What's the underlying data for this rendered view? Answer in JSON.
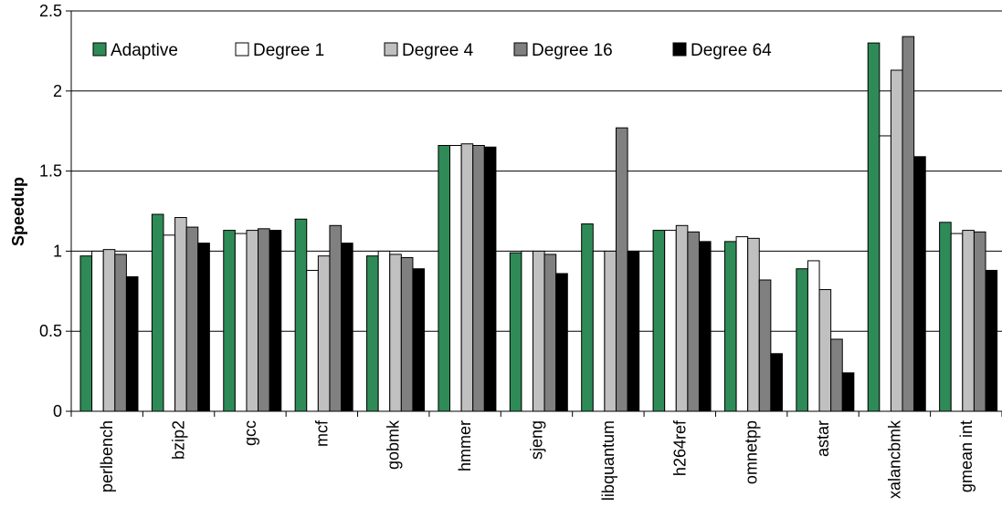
{
  "chart_data": {
    "type": "bar",
    "title": "",
    "xlabel": "",
    "ylabel": "Speedup",
    "ylim": [
      0,
      2.5
    ],
    "yticks": [
      "0",
      "0.5",
      "1",
      "1.5",
      "2",
      "2.5"
    ],
    "grid": true,
    "legend_position": "top",
    "categories": [
      "perlbench",
      "bzip2",
      "gcc",
      "mcf",
      "gobmk",
      "hmmer",
      "sjeng",
      "libquantum",
      "h264ref",
      "omnetpp",
      "astar",
      "xalancbmk",
      "gmean int"
    ],
    "series": [
      {
        "name": "Adaptive",
        "color": "#2e8b57",
        "values": [
          0.97,
          1.23,
          1.13,
          1.2,
          0.97,
          1.66,
          0.99,
          1.17,
          1.13,
          1.06,
          0.89,
          2.3,
          1.18
        ]
      },
      {
        "name": "Degree 1",
        "color": "#ffffff",
        "values": [
          1.0,
          1.1,
          1.11,
          0.88,
          1.0,
          1.66,
          1.0,
          1.0,
          1.13,
          1.09,
          0.94,
          1.72,
          1.11
        ]
      },
      {
        "name": "Degree 4",
        "color": "#c0c0c0",
        "values": [
          1.01,
          1.21,
          1.13,
          0.97,
          0.98,
          1.67,
          1.0,
          1.0,
          1.16,
          1.08,
          0.76,
          2.13,
          1.13
        ]
      },
      {
        "name": "Degree 16",
        "color": "#808080",
        "values": [
          0.98,
          1.15,
          1.14,
          1.16,
          0.96,
          1.66,
          0.98,
          1.77,
          1.12,
          0.82,
          0.45,
          2.34,
          1.12
        ]
      },
      {
        "name": "Degree 64",
        "color": "#000000",
        "values": [
          0.84,
          1.05,
          1.13,
          1.05,
          0.89,
          1.65,
          0.86,
          1.0,
          1.06,
          0.36,
          0.24,
          1.59,
          0.88
        ]
      }
    ]
  }
}
